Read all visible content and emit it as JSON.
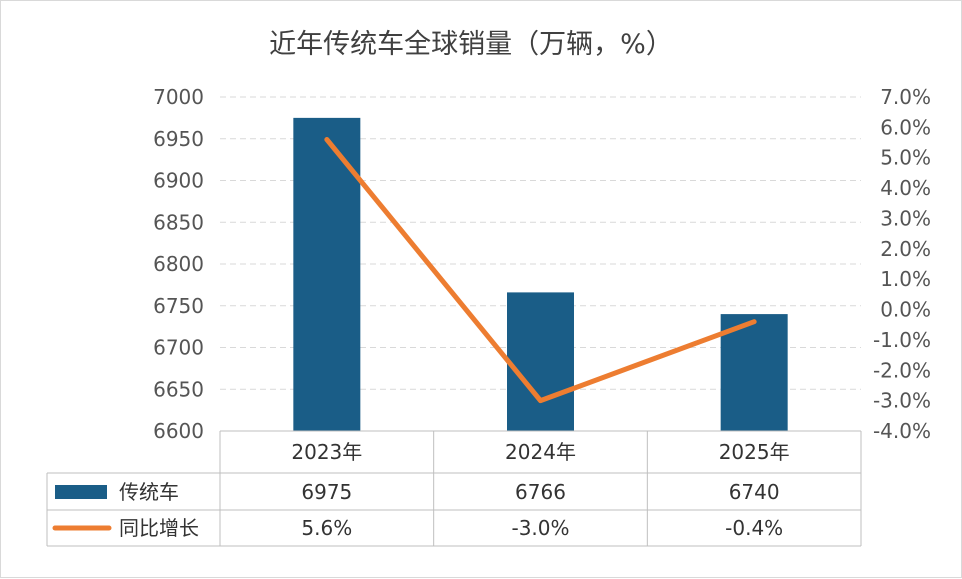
{
  "chart_data": {
    "type": "bar",
    "title": "近年传统车全球销量（万辆，%）",
    "categories": [
      "2023年",
      "2024年",
      "2025年"
    ],
    "series": [
      {
        "name": "传统车",
        "kind": "bar",
        "axis": "left",
        "values": [
          6975,
          6766,
          6740
        ],
        "display_values": [
          "6975",
          "6766",
          "6740"
        ],
        "color": "#1a5d87"
      },
      {
        "name": "同比增长",
        "kind": "line",
        "axis": "right",
        "values": [
          5.6,
          -3.0,
          -0.4
        ],
        "display_values": [
          "5.6%",
          "-3.0%",
          "-0.4%"
        ],
        "color": "#ed7d31"
      }
    ],
    "y_left": {
      "min": 6600,
      "max": 7000,
      "step": 50,
      "ticks": [
        "6600",
        "6650",
        "6700",
        "6750",
        "6800",
        "6850",
        "6900",
        "6950",
        "7000"
      ]
    },
    "y_right": {
      "min": -4.0,
      "max": 7.0,
      "step": 1.0,
      "ticks": [
        "-4.0%",
        "-3.0%",
        "-2.0%",
        "-1.0%",
        "0.0%",
        "1.0%",
        "2.0%",
        "3.0%",
        "4.0%",
        "5.0%",
        "6.0%",
        "7.0%"
      ]
    },
    "grid": true,
    "legend": "data-table"
  }
}
